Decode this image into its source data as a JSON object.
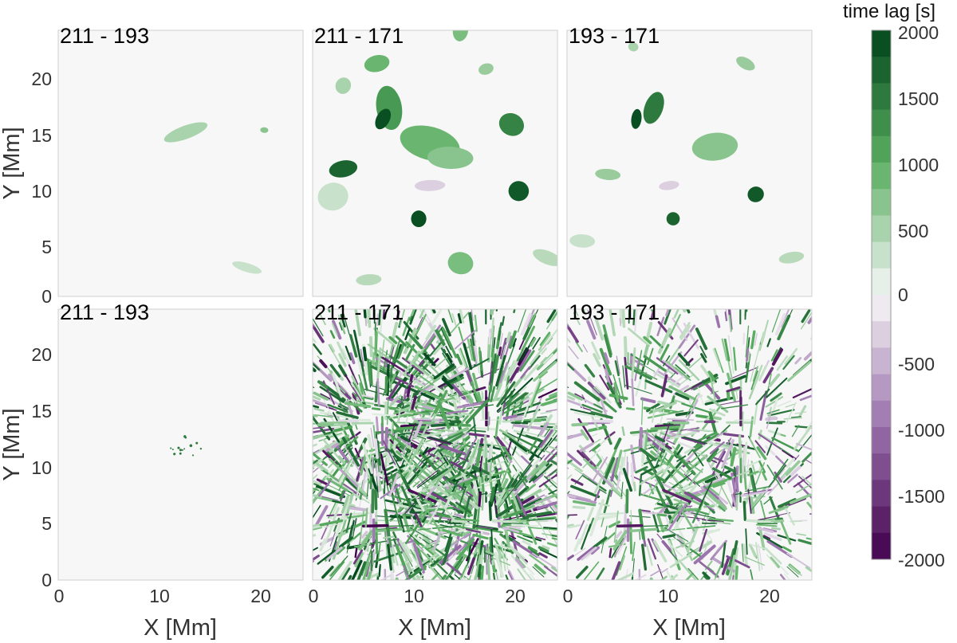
{
  "chart_data": {
    "type": "heatmap",
    "panels": [
      {
        "title": "211 - 193",
        "row": "top",
        "col": 0
      },
      {
        "title": "211 - 171",
        "row": "top",
        "col": 1
      },
      {
        "title": "193 - 171",
        "row": "top",
        "col": 2
      },
      {
        "title": "211 - 193",
        "row": "bottom",
        "col": 0
      },
      {
        "title": "211 - 171",
        "row": "bottom",
        "col": 1
      },
      {
        "title": "193 - 171",
        "row": "bottom",
        "col": 2
      }
    ],
    "xlabel": "X [Mm]",
    "ylabel": "Y [Mm]",
    "xlim": [
      0,
      24
    ],
    "ylim": [
      0,
      24
    ],
    "xticks": [
      0,
      10,
      20
    ],
    "yticks": [
      0,
      5,
      10,
      15,
      20
    ],
    "colorbar": {
      "title": "time lag [s]",
      "range": [
        -2000,
        2000
      ],
      "ticks": [
        2000,
        1500,
        1000,
        500,
        0,
        -500,
        -1000,
        -1500,
        -2000
      ],
      "positive_color": "#00441b",
      "zero_color": "#f7f7f7",
      "negative_color": "#40004b"
    },
    "blobs": [
      {
        "panel": 0,
        "x": 12.5,
        "y": 14.8,
        "w": 4.5,
        "h": 1.2,
        "lag": 500
      },
      {
        "panel": 0,
        "x": 18.5,
        "y": 2.6,
        "w": 3.0,
        "h": 0.8,
        "lag": 300
      },
      {
        "panel": 0,
        "x": 20.2,
        "y": 15.0,
        "w": 0.8,
        "h": 0.5,
        "lag": 700
      },
      {
        "panel": 1,
        "x": 7.5,
        "y": 17.0,
        "w": 2.5,
        "h": 4.0,
        "lag": 1200
      },
      {
        "panel": 1,
        "x": 6.9,
        "y": 16.0,
        "w": 1.3,
        "h": 2.0,
        "lag": 1900
      },
      {
        "panel": 1,
        "x": 11.5,
        "y": 13.8,
        "w": 6.0,
        "h": 3.0,
        "lag": 900
      },
      {
        "panel": 1,
        "x": 13.5,
        "y": 12.5,
        "w": 4.5,
        "h": 2.0,
        "lag": 700
      },
      {
        "panel": 1,
        "x": 3.0,
        "y": 11.5,
        "w": 2.8,
        "h": 1.5,
        "lag": 1700
      },
      {
        "panel": 1,
        "x": 19.5,
        "y": 15.5,
        "w": 2.5,
        "h": 2.0,
        "lag": 1400
      },
      {
        "panel": 1,
        "x": 20.2,
        "y": 9.5,
        "w": 2.0,
        "h": 1.8,
        "lag": 1800
      },
      {
        "panel": 1,
        "x": 10.4,
        "y": 7.0,
        "w": 1.5,
        "h": 1.5,
        "lag": 1900
      },
      {
        "panel": 1,
        "x": 6.3,
        "y": 21.0,
        "w": 2.5,
        "h": 1.5,
        "lag": 900
      },
      {
        "panel": 1,
        "x": 3.0,
        "y": 19.0,
        "w": 1.5,
        "h": 1.5,
        "lag": 500
      },
      {
        "panel": 1,
        "x": 14.5,
        "y": 3.0,
        "w": 2.5,
        "h": 2.0,
        "lag": 800
      },
      {
        "panel": 1,
        "x": 11.5,
        "y": 10.0,
        "w": 3.0,
        "h": 1.0,
        "lag": -300
      },
      {
        "panel": 1,
        "x": 2.0,
        "y": 9.0,
        "w": 3.0,
        "h": 2.5,
        "lag": 300
      },
      {
        "panel": 1,
        "x": 23.0,
        "y": 3.5,
        "w": 3.0,
        "h": 1.2,
        "lag": 400
      },
      {
        "panel": 1,
        "x": 14.5,
        "y": 24.0,
        "w": 1.5,
        "h": 2.0,
        "lag": 800
      },
      {
        "panel": 1,
        "x": 5.5,
        "y": 1.5,
        "w": 2.5,
        "h": 1.0,
        "lag": 400
      },
      {
        "panel": 1,
        "x": 17.0,
        "y": 20.5,
        "w": 1.5,
        "h": 1.0,
        "lag": 600
      },
      {
        "panel": 2,
        "x": 8.5,
        "y": 17.0,
        "w": 1.8,
        "h": 3.0,
        "lag": 1500
      },
      {
        "panel": 2,
        "x": 6.8,
        "y": 16.0,
        "w": 1.0,
        "h": 1.8,
        "lag": 1900
      },
      {
        "panel": 2,
        "x": 14.5,
        "y": 13.5,
        "w": 4.5,
        "h": 2.5,
        "lag": 700
      },
      {
        "panel": 2,
        "x": 18.5,
        "y": 9.2,
        "w": 1.6,
        "h": 1.4,
        "lag": 1800
      },
      {
        "panel": 2,
        "x": 10.4,
        "y": 7.0,
        "w": 1.3,
        "h": 1.2,
        "lag": 1700
      },
      {
        "panel": 2,
        "x": 4.0,
        "y": 11.0,
        "w": 2.5,
        "h": 1.0,
        "lag": 600
      },
      {
        "panel": 2,
        "x": 10.0,
        "y": 10.0,
        "w": 2.0,
        "h": 0.8,
        "lag": -300
      },
      {
        "panel": 2,
        "x": 17.5,
        "y": 21.0,
        "w": 2.0,
        "h": 1.0,
        "lag": 600
      },
      {
        "panel": 2,
        "x": 6.5,
        "y": 22.5,
        "w": 1.0,
        "h": 0.8,
        "lag": 500
      },
      {
        "panel": 2,
        "x": 1.5,
        "y": 5.0,
        "w": 2.5,
        "h": 1.2,
        "lag": 300
      },
      {
        "panel": 2,
        "x": 22.0,
        "y": 3.5,
        "w": 2.5,
        "h": 1.0,
        "lag": 400
      }
    ]
  }
}
